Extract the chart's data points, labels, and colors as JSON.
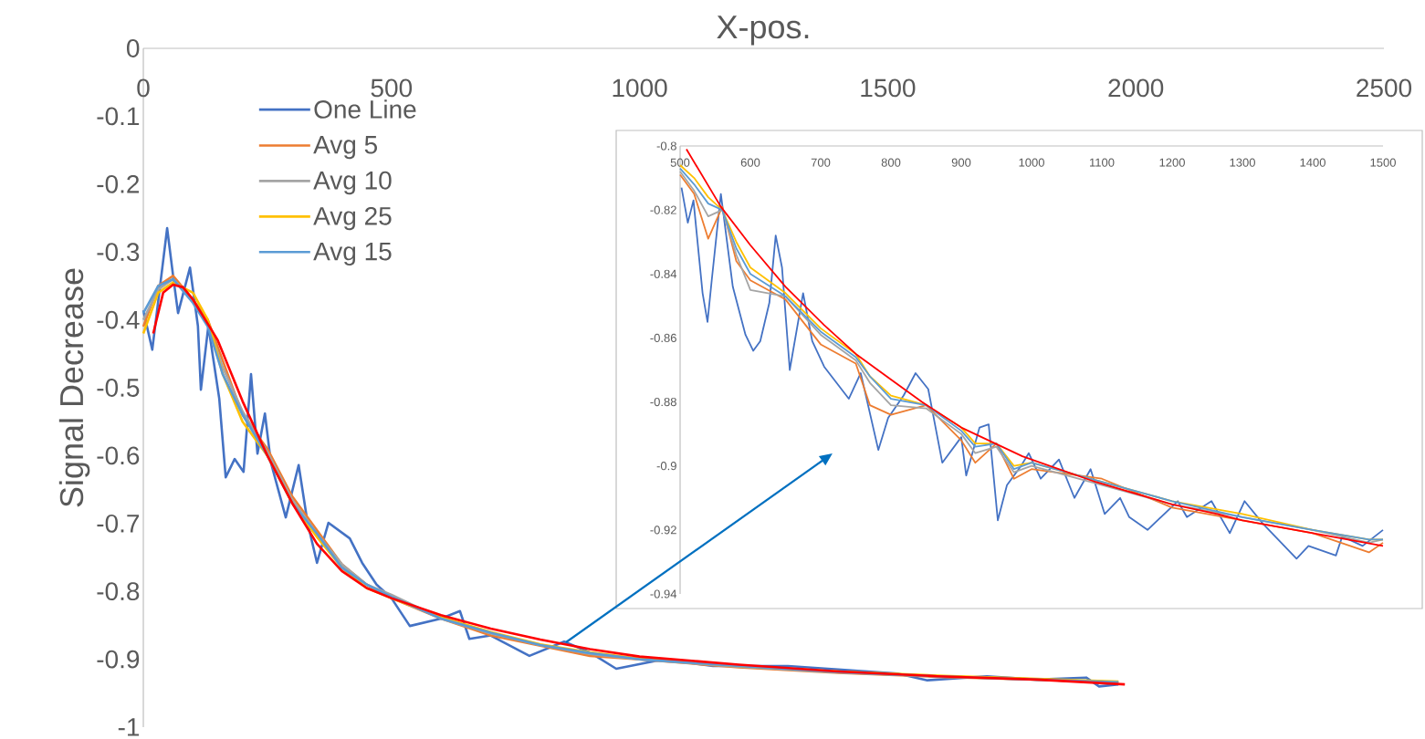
{
  "chart_data": [
    {
      "type": "line",
      "xlabel": "X-pos.",
      "ylabel": "Signal Decrease",
      "xlim": [
        0,
        2500
      ],
      "ylim": [
        -1,
        0
      ],
      "xticks": [
        0,
        500,
        1000,
        1500,
        2000,
        2500
      ],
      "yticks": [
        -1,
        -0.9,
        -0.8,
        -0.7,
        -0.6,
        -0.5,
        -0.4,
        -0.3,
        -0.2,
        -0.1,
        0
      ],
      "legend": "top left",
      "series": [
        {
          "name": "One Line",
          "color": "#4472c4",
          "x": [
            0,
            18,
            48,
            61,
            70,
            94,
            110,
            116,
            131,
            153,
            166,
            184,
            202,
            217,
            230,
            245,
            257,
            287,
            313,
            331,
            350,
            373,
            416,
            441,
            470,
            500,
            537,
            600,
            638,
            657,
            700,
            778,
            848,
            900,
            953,
            1050,
            1148,
            1299,
            1400,
            1520,
            1580,
            1700,
            1800,
            1900,
            1926,
            1965
          ],
          "values": [
            -0.386,
            -0.444,
            -0.265,
            -0.341,
            -0.39,
            -0.323,
            -0.409,
            -0.503,
            -0.409,
            -0.516,
            -0.632,
            -0.605,
            -0.624,
            -0.48,
            -0.597,
            -0.538,
            -0.61,
            -0.691,
            -0.614,
            -0.699,
            -0.758,
            -0.699,
            -0.722,
            -0.758,
            -0.79,
            -0.81,
            -0.851,
            -0.84,
            -0.829,
            -0.87,
            -0.865,
            -0.895,
            -0.874,
            -0.89,
            -0.914,
            -0.9,
            -0.91,
            -0.91,
            -0.915,
            -0.921,
            -0.931,
            -0.925,
            -0.93,
            -0.927,
            -0.94,
            -0.937
          ]
        },
        {
          "name": "Avg 5",
          "color": "#ed7d31",
          "x": [
            0,
            30,
            60,
            100,
            130,
            160,
            200,
            250,
            300,
            350,
            400,
            450,
            500,
            600,
            700,
            800,
            900,
            1000,
            1200,
            1400,
            1600,
            1800,
            1965
          ],
          "values": [
            -0.41,
            -0.35,
            -0.335,
            -0.37,
            -0.4,
            -0.46,
            -0.54,
            -0.59,
            -0.66,
            -0.71,
            -0.76,
            -0.79,
            -0.81,
            -0.84,
            -0.865,
            -0.88,
            -0.895,
            -0.9,
            -0.912,
            -0.92,
            -0.926,
            -0.93,
            -0.934
          ]
        },
        {
          "name": "Avg 10",
          "color": "#a5a5a5",
          "x": [
            0,
            30,
            60,
            100,
            130,
            160,
            200,
            250,
            300,
            350,
            400,
            450,
            500,
            600,
            700,
            800,
            900,
            1000,
            1200,
            1400,
            1600,
            1800,
            1965
          ],
          "values": [
            -0.4,
            -0.355,
            -0.34,
            -0.37,
            -0.405,
            -0.47,
            -0.535,
            -0.595,
            -0.665,
            -0.715,
            -0.76,
            -0.79,
            -0.805,
            -0.84,
            -0.862,
            -0.879,
            -0.892,
            -0.9,
            -0.911,
            -0.919,
            -0.925,
            -0.93,
            -0.934
          ]
        },
        {
          "name": "Avg 25",
          "color": "#ffc000",
          "x": [
            0,
            30,
            60,
            100,
            130,
            160,
            200,
            250,
            300,
            350,
            400,
            450,
            500,
            600,
            700,
            800,
            900,
            1000,
            1200,
            1400,
            1600,
            1800,
            1965
          ],
          "values": [
            -0.42,
            -0.36,
            -0.345,
            -0.36,
            -0.4,
            -0.48,
            -0.55,
            -0.6,
            -0.67,
            -0.72,
            -0.765,
            -0.795,
            -0.81,
            -0.838,
            -0.86,
            -0.878,
            -0.89,
            -0.899,
            -0.91,
            -0.918,
            -0.924,
            -0.929,
            -0.933
          ]
        },
        {
          "name": "Avg 15",
          "color": "#5b9bd5",
          "x": [
            0,
            30,
            60,
            100,
            130,
            160,
            200,
            250,
            300,
            350,
            400,
            450,
            500,
            600,
            700,
            800,
            900,
            1000,
            1200,
            1400,
            1600,
            1800,
            1965
          ],
          "values": [
            -0.39,
            -0.35,
            -0.34,
            -0.375,
            -0.41,
            -0.48,
            -0.54,
            -0.6,
            -0.67,
            -0.715,
            -0.765,
            -0.79,
            -0.808,
            -0.84,
            -0.861,
            -0.879,
            -0.891,
            -0.9,
            -0.91,
            -0.919,
            -0.925,
            -0.93,
            -0.934
          ]
        },
        {
          "color": "#ff0000",
          "x": [
            20,
            40,
            60,
            80,
            100,
            150,
            200,
            250,
            300,
            350,
            400,
            450,
            500,
            600,
            700,
            800,
            900,
            1000,
            1200,
            1400,
            1600,
            1800,
            1978
          ],
          "values": [
            -0.42,
            -0.36,
            -0.348,
            -0.352,
            -0.37,
            -0.43,
            -0.52,
            -0.6,
            -0.67,
            -0.73,
            -0.77,
            -0.795,
            -0.81,
            -0.835,
            -0.855,
            -0.871,
            -0.885,
            -0.896,
            -0.908,
            -0.918,
            -0.925,
            -0.93,
            -0.937
          ]
        }
      ]
    },
    {
      "type": "line",
      "xlim": [
        500,
        1500
      ],
      "ylim": [
        -0.94,
        -0.8
      ],
      "xticks": [
        500,
        600,
        700,
        800,
        900,
        1000,
        1100,
        1200,
        1300,
        1400,
        1500
      ],
      "yticks": [
        -0.94,
        -0.92,
        -0.9,
        -0.88,
        -0.86,
        -0.84,
        -0.82,
        -0.8
      ],
      "series": [
        {
          "color": "#4472c4",
          "x": [
            502,
            511,
            519,
            532,
            539,
            545,
            558,
            575,
            593,
            604,
            614,
            627,
            636,
            645,
            656,
            675,
            688,
            705,
            740,
            757,
            782,
            796,
            818,
            835,
            853,
            873,
            900,
            907,
            926,
            939,
            952,
            965,
            985,
            996,
            1013,
            1039,
            1061,
            1084,
            1104,
            1126,
            1139,
            1165,
            1208,
            1221,
            1256,
            1282,
            1303,
            1329,
            1377,
            1394,
            1433,
            1442,
            1471,
            1500
          ],
          "values": [
            -0.813,
            -0.824,
            -0.817,
            -0.846,
            -0.855,
            -0.842,
            -0.815,
            -0.844,
            -0.859,
            -0.864,
            -0.861,
            -0.849,
            -0.828,
            -0.838,
            -0.87,
            -0.846,
            -0.861,
            -0.869,
            -0.879,
            -0.871,
            -0.895,
            -0.885,
            -0.878,
            -0.871,
            -0.876,
            -0.899,
            -0.891,
            -0.903,
            -0.888,
            -0.887,
            -0.917,
            -0.906,
            -0.9,
            -0.896,
            -0.904,
            -0.898,
            -0.91,
            -0.901,
            -0.915,
            -0.91,
            -0.916,
            -0.92,
            -0.911,
            -0.916,
            -0.911,
            -0.921,
            -0.911,
            -0.918,
            -0.929,
            -0.925,
            -0.928,
            -0.922,
            -0.925,
            -0.92
          ]
        },
        {
          "color": "#ed7d31",
          "x": [
            500,
            520,
            540,
            560,
            580,
            600,
            650,
            700,
            750,
            770,
            800,
            850,
            900,
            920,
            950,
            975,
            1000,
            1100,
            1200,
            1300,
            1400,
            1480,
            1500
          ],
          "values": [
            -0.809,
            -0.815,
            -0.829,
            -0.819,
            -0.836,
            -0.842,
            -0.848,
            -0.862,
            -0.868,
            -0.881,
            -0.884,
            -0.881,
            -0.892,
            -0.899,
            -0.893,
            -0.904,
            -0.901,
            -0.904,
            -0.913,
            -0.917,
            -0.921,
            -0.927,
            -0.924
          ]
        },
        {
          "color": "#a5a5a5",
          "x": [
            500,
            520,
            540,
            560,
            580,
            600,
            650,
            700,
            750,
            770,
            800,
            850,
            900,
            920,
            950,
            975,
            1000,
            1100,
            1200,
            1300,
            1400,
            1480,
            1500
          ],
          "values": [
            -0.808,
            -0.814,
            -0.822,
            -0.82,
            -0.834,
            -0.845,
            -0.847,
            -0.859,
            -0.867,
            -0.874,
            -0.881,
            -0.882,
            -0.89,
            -0.896,
            -0.894,
            -0.902,
            -0.9,
            -0.906,
            -0.912,
            -0.916,
            -0.92,
            -0.924,
            -0.923
          ]
        },
        {
          "color": "#ffc000",
          "x": [
            500,
            520,
            540,
            560,
            580,
            600,
            650,
            700,
            750,
            770,
            800,
            850,
            900,
            920,
            950,
            975,
            1000,
            1100,
            1200,
            1300,
            1400,
            1480,
            1500
          ],
          "values": [
            -0.806,
            -0.81,
            -0.816,
            -0.82,
            -0.83,
            -0.838,
            -0.846,
            -0.857,
            -0.865,
            -0.872,
            -0.878,
            -0.881,
            -0.888,
            -0.893,
            -0.893,
            -0.9,
            -0.899,
            -0.905,
            -0.911,
            -0.915,
            -0.92,
            -0.923,
            -0.923
          ]
        },
        {
          "color": "#5b9bd5",
          "x": [
            500,
            520,
            540,
            560,
            580,
            600,
            650,
            700,
            750,
            770,
            800,
            850,
            900,
            920,
            950,
            975,
            1000,
            1100,
            1200,
            1300,
            1400,
            1480,
            1500
          ],
          "values": [
            -0.807,
            -0.812,
            -0.818,
            -0.82,
            -0.832,
            -0.84,
            -0.847,
            -0.858,
            -0.866,
            -0.872,
            -0.879,
            -0.881,
            -0.889,
            -0.894,
            -0.893,
            -0.901,
            -0.899,
            -0.905,
            -0.911,
            -0.916,
            -0.92,
            -0.923,
            -0.923
          ]
        },
        {
          "color": "#ff0000",
          "x": [
            509,
            558,
            600,
            650,
            705,
            750,
            800,
            844,
            900,
            987,
            1091,
            1200,
            1264,
            1300,
            1400,
            1500
          ],
          "values": [
            -0.801,
            -0.819,
            -0.831,
            -0.844,
            -0.856,
            -0.865,
            -0.873,
            -0.88,
            -0.888,
            -0.897,
            -0.905,
            -0.912,
            -0.915,
            -0.917,
            -0.921,
            -0.925
          ]
        }
      ]
    }
  ]
}
